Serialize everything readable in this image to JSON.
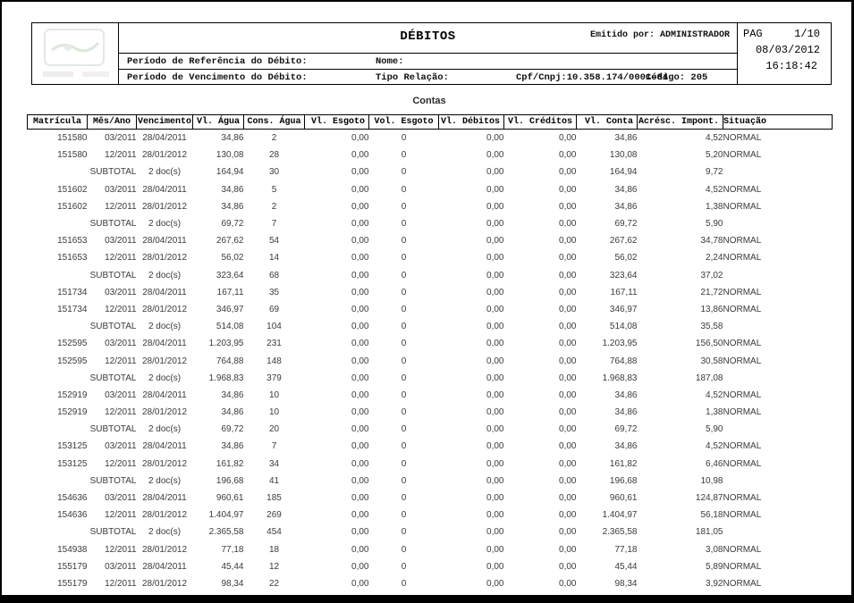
{
  "report": {
    "title": "DÉBITOS",
    "emitted_by": "Emitido por: ADMINISTRADOR",
    "pag_label": "PAG",
    "pag_value": "1/10",
    "date": "08/03/2012",
    "time": "16:18:42",
    "ref_label": "Período de Referência do Débito:",
    "venc_label": "Período de Vencimento do Débito:",
    "nome_label": "Nome:",
    "tipo_label": "Tipo Relação:",
    "cpf_cnpj": "Cpf/Cnpj:10.358.174/0001-84",
    "codigo": "Código: 205"
  },
  "section": {
    "title": "Contas"
  },
  "table": {
    "columns": [
      "Matrícula",
      "Mês/Ano",
      "Vencimento",
      "Vl. Água",
      "Cons. Água",
      "Vl. Esgoto",
      "Vol. Esgoto",
      "Vl. Débitos",
      "Vl. Créditos",
      "Vl. Conta",
      "Acrésc. Impont.",
      "Situação"
    ],
    "rows": [
      [
        "151580",
        "03/2011",
        "28/04/2011",
        "34,86",
        "2",
        "0,00",
        "0",
        "0,00",
        "0,00",
        "34,86",
        "4,52",
        "NORMAL"
      ],
      [
        "151580",
        "12/2011",
        "28/01/2012",
        "130,08",
        "28",
        "0,00",
        "0",
        "0,00",
        "0,00",
        "130,08",
        "5,20",
        "NORMAL"
      ],
      [
        "",
        "SUBTOTAL",
        "2 doc(s)",
        "164,94",
        "30",
        "0,00",
        "0",
        "0,00",
        "0,00",
        "164,94",
        "9,72",
        ""
      ],
      [
        "151602",
        "03/2011",
        "28/04/2011",
        "34,86",
        "5",
        "0,00",
        "0",
        "0,00",
        "0,00",
        "34,86",
        "4,52",
        "NORMAL"
      ],
      [
        "151602",
        "12/2011",
        "28/01/2012",
        "34,86",
        "2",
        "0,00",
        "0",
        "0,00",
        "0,00",
        "34,86",
        "1,38",
        "NORMAL"
      ],
      [
        "",
        "SUBTOTAL",
        "2 doc(s)",
        "69,72",
        "7",
        "0,00",
        "0",
        "0,00",
        "0,00",
        "69,72",
        "5,90",
        ""
      ],
      [
        "151653",
        "03/2011",
        "28/04/2011",
        "267,62",
        "54",
        "0,00",
        "0",
        "0,00",
        "0,00",
        "267,62",
        "34,78",
        "NORMAL"
      ],
      [
        "151653",
        "12/2011",
        "28/01/2012",
        "56,02",
        "14",
        "0,00",
        "0",
        "0,00",
        "0,00",
        "56,02",
        "2,24",
        "NORMAL"
      ],
      [
        "",
        "SUBTOTAL",
        "2 doc(s)",
        "323,64",
        "68",
        "0,00",
        "0",
        "0,00",
        "0,00",
        "323,64",
        "37,02",
        ""
      ],
      [
        "151734",
        "03/2011",
        "28/04/2011",
        "167,11",
        "35",
        "0,00",
        "0",
        "0,00",
        "0,00",
        "167,11",
        "21,72",
        "NORMAL"
      ],
      [
        "151734",
        "12/2011",
        "28/01/2012",
        "346,97",
        "69",
        "0,00",
        "0",
        "0,00",
        "0,00",
        "346,97",
        "13,86",
        "NORMAL"
      ],
      [
        "",
        "SUBTOTAL",
        "2 doc(s)",
        "514,08",
        "104",
        "0,00",
        "0",
        "0,00",
        "0,00",
        "514,08",
        "35,58",
        ""
      ],
      [
        "152595",
        "03/2011",
        "28/04/2011",
        "1.203,95",
        "231",
        "0,00",
        "0",
        "0,00",
        "0,00",
        "1.203,95",
        "156,50",
        "NORMAL"
      ],
      [
        "152595",
        "12/2011",
        "28/01/2012",
        "764,88",
        "148",
        "0,00",
        "0",
        "0,00",
        "0,00",
        "764,88",
        "30,58",
        "NORMAL"
      ],
      [
        "",
        "SUBTOTAL",
        "2 doc(s)",
        "1.968,83",
        "379",
        "0,00",
        "0",
        "0,00",
        "0,00",
        "1.968,83",
        "187,08",
        ""
      ],
      [
        "152919",
        "03/2011",
        "28/04/2011",
        "34,86",
        "10",
        "0,00",
        "0",
        "0,00",
        "0,00",
        "34,86",
        "4,52",
        "NORMAL"
      ],
      [
        "152919",
        "12/2011",
        "28/01/2012",
        "34,86",
        "10",
        "0,00",
        "0",
        "0,00",
        "0,00",
        "34,86",
        "1,38",
        "NORMAL"
      ],
      [
        "",
        "SUBTOTAL",
        "2 doc(s)",
        "69,72",
        "20",
        "0,00",
        "0",
        "0,00",
        "0,00",
        "69,72",
        "5,90",
        ""
      ],
      [
        "153125",
        "03/2011",
        "28/04/2011",
        "34,86",
        "7",
        "0,00",
        "0",
        "0,00",
        "0,00",
        "34,86",
        "4,52",
        "NORMAL"
      ],
      [
        "153125",
        "12/2011",
        "28/01/2012",
        "161,82",
        "34",
        "0,00",
        "0",
        "0,00",
        "0,00",
        "161,82",
        "6,46",
        "NORMAL"
      ],
      [
        "",
        "SUBTOTAL",
        "2 doc(s)",
        "196,68",
        "41",
        "0,00",
        "0",
        "0,00",
        "0,00",
        "196,68",
        "10,98",
        ""
      ],
      [
        "154636",
        "03/2011",
        "28/04/2011",
        "960,61",
        "185",
        "0,00",
        "0",
        "0,00",
        "0,00",
        "960,61",
        "124,87",
        "NORMAL"
      ],
      [
        "154636",
        "12/2011",
        "28/01/2012",
        "1.404,97",
        "269",
        "0,00",
        "0",
        "0,00",
        "0,00",
        "1.404,97",
        "56,18",
        "NORMAL"
      ],
      [
        "",
        "SUBTOTAL",
        "2 doc(s)",
        "2.365,58",
        "454",
        "0,00",
        "0",
        "0,00",
        "0,00",
        "2.365,58",
        "181,05",
        ""
      ],
      [
        "154938",
        "12/2011",
        "28/01/2012",
        "77,18",
        "18",
        "0,00",
        "0",
        "0,00",
        "0,00",
        "77,18",
        "3,08",
        "NORMAL"
      ],
      [
        "155179",
        "03/2011",
        "28/04/2011",
        "45,44",
        "12",
        "0,00",
        "0",
        "0,00",
        "0,00",
        "45,44",
        "5,89",
        "NORMAL"
      ],
      [
        "155179",
        "12/2011",
        "28/01/2012",
        "98,34",
        "22",
        "0,00",
        "0",
        "0,00",
        "0,00",
        "98,34",
        "3,92",
        "NORMAL"
      ]
    ]
  }
}
